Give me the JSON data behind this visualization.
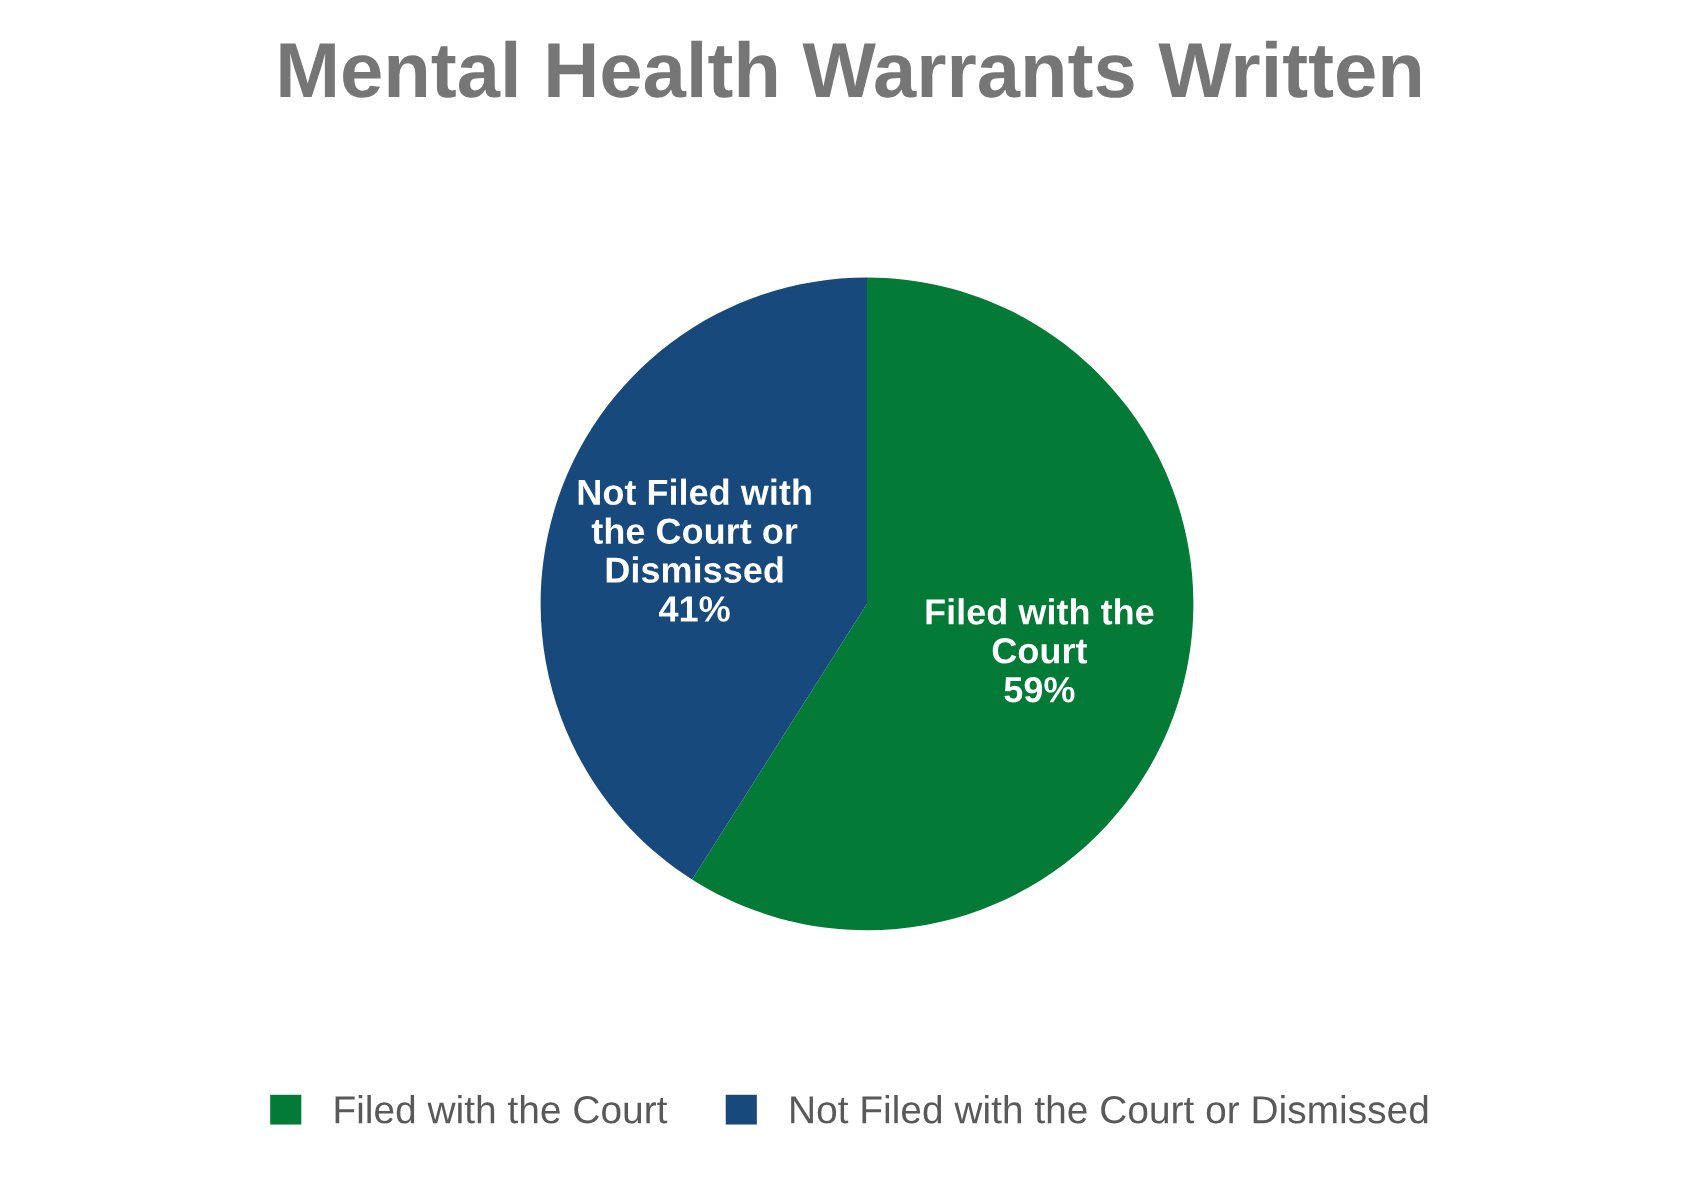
{
  "chart_data": {
    "type": "pie",
    "title": "Mental Health Warrants Written",
    "categories": [
      "Filed with the Court",
      "Not Filed with the Court or Dismissed"
    ],
    "values": [
      59,
      41
    ],
    "colors": [
      "#037a36",
      "#17497c"
    ],
    "value_labels": [
      "59%",
      "41%"
    ],
    "legend": "bottom"
  }
}
